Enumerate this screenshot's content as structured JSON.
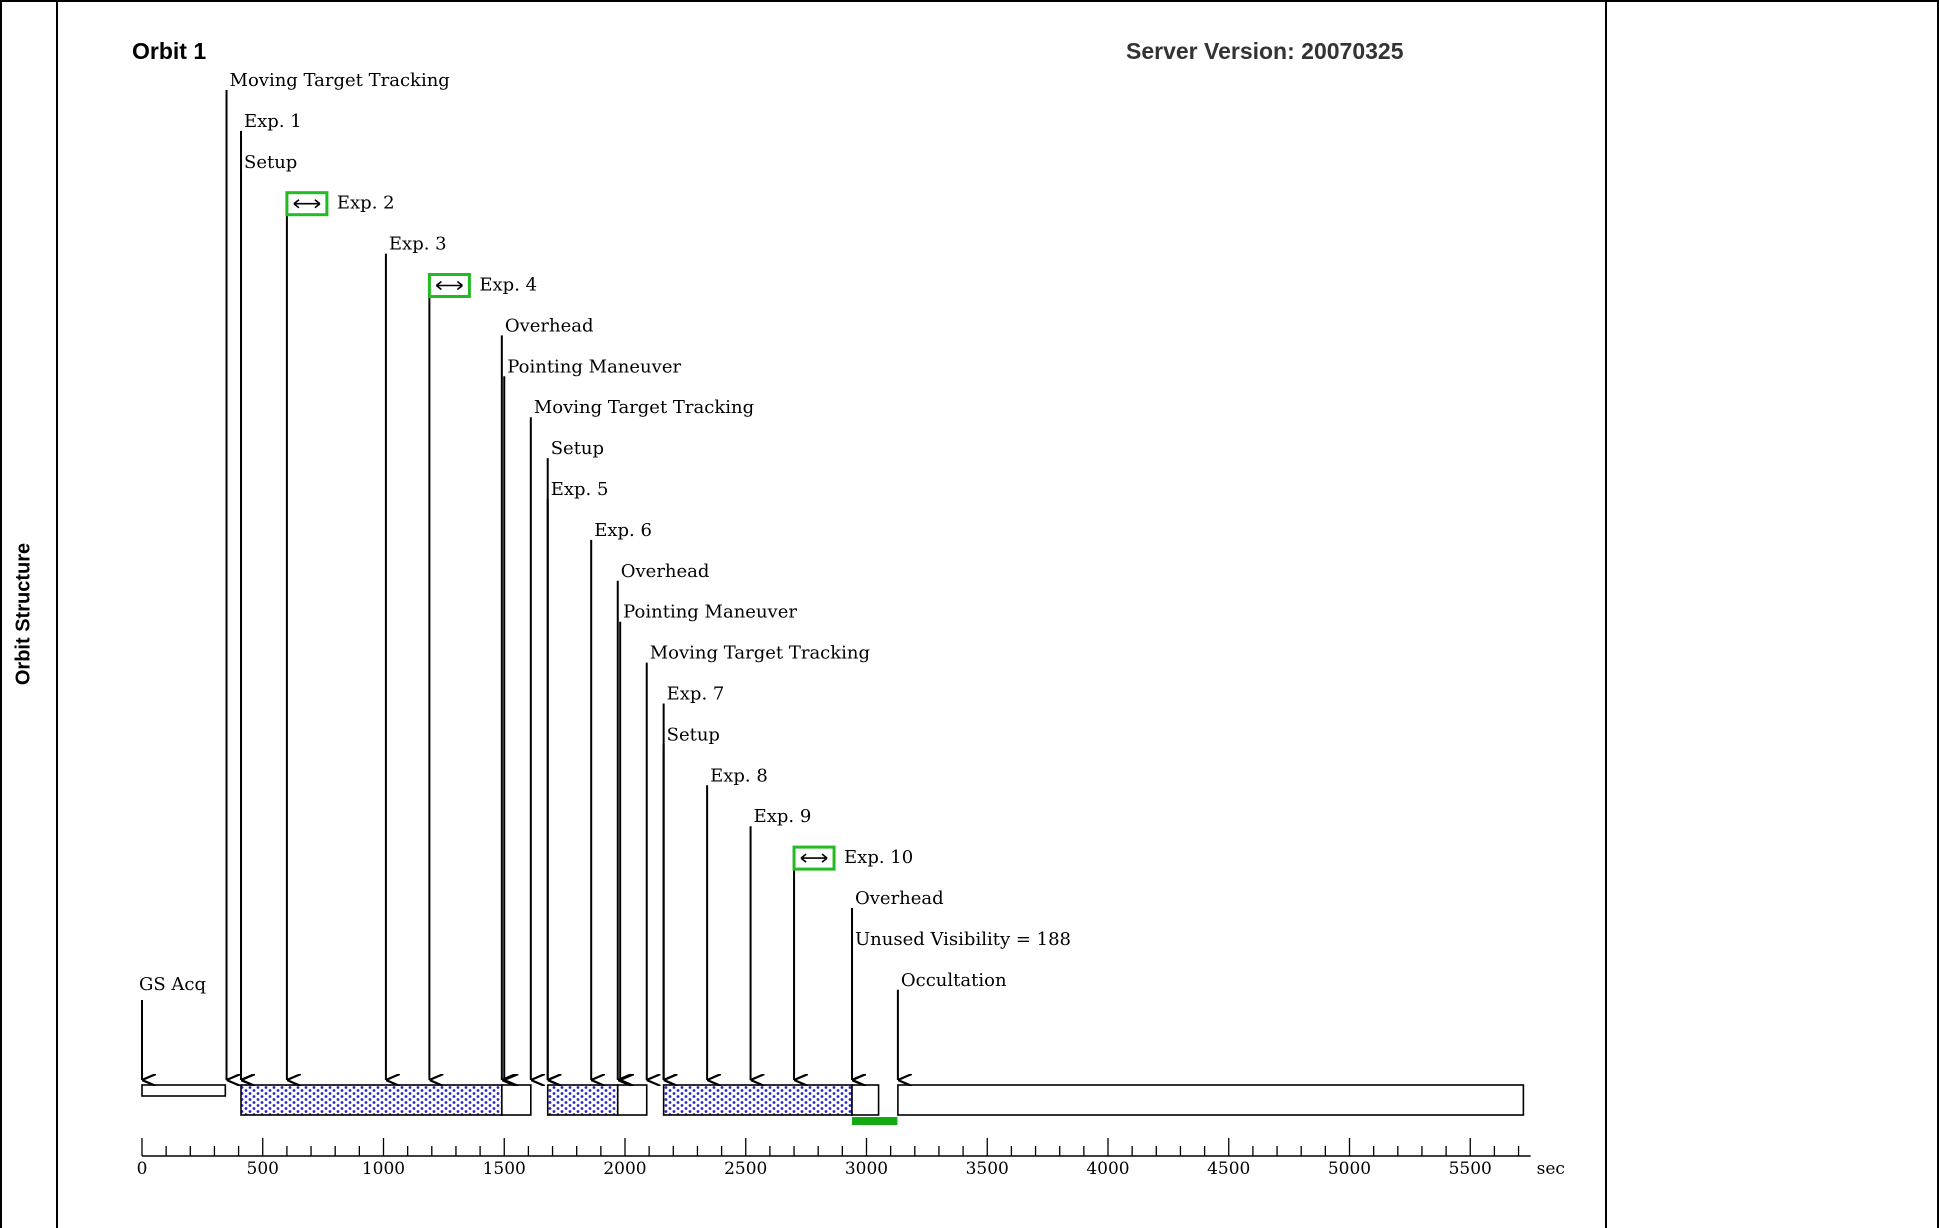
{
  "panel": {
    "side_label": "Orbit Structure"
  },
  "header": {
    "orbit_title": "Orbit 1",
    "server_version": "Server Version: 20070325"
  },
  "timeline": {
    "unit": "sec",
    "axis_ticks": [
      "0",
      "500",
      "1000",
      "1500",
      "2000",
      "2500",
      "3000",
      "3500",
      "4000",
      "4500",
      "5000",
      "5500"
    ],
    "axis_max": 5750,
    "events": [
      {
        "label": "Moving Target Tracking",
        "t": 350,
        "flag": false
      },
      {
        "label": "Exp. 1",
        "t": 410,
        "flag": false
      },
      {
        "label": "Setup",
        "t": 410,
        "flag": false
      },
      {
        "label": "Exp. 2",
        "t": 600,
        "flag": true
      },
      {
        "label": "Exp. 3",
        "t": 1010,
        "flag": false
      },
      {
        "label": "Exp. 4",
        "t": 1190,
        "flag": true
      },
      {
        "label": "Overhead",
        "t": 1490,
        "flag": false
      },
      {
        "label": "Pointing Maneuver",
        "t": 1500,
        "flag": false
      },
      {
        "label": "Moving Target Tracking",
        "t": 1610,
        "flag": false
      },
      {
        "label": "Setup",
        "t": 1680,
        "flag": false
      },
      {
        "label": "Exp. 5",
        "t": 1680,
        "flag": false
      },
      {
        "label": "Exp. 6",
        "t": 1860,
        "flag": false
      },
      {
        "label": "Overhead",
        "t": 1970,
        "flag": false
      },
      {
        "label": "Pointing Maneuver",
        "t": 1980,
        "flag": false
      },
      {
        "label": "Moving Target Tracking",
        "t": 2090,
        "flag": false
      },
      {
        "label": "Exp. 7",
        "t": 2160,
        "flag": false
      },
      {
        "label": "Setup",
        "t": 2160,
        "flag": false
      },
      {
        "label": "Exp. 8",
        "t": 2340,
        "flag": false
      },
      {
        "label": "Exp. 9",
        "t": 2520,
        "flag": false
      },
      {
        "label": "Exp. 10",
        "t": 2700,
        "flag": true
      },
      {
        "label": "Overhead",
        "t": 2940,
        "flag": false
      },
      {
        "label": "Unused Visibility = 188",
        "t": 2940,
        "flag": false
      },
      {
        "label": "Occultation",
        "t": 3130,
        "flag": false
      }
    ],
    "gs_acq": {
      "label": "GS Acq",
      "t": 0
    },
    "segments": [
      {
        "kind": "plain",
        "start": 0,
        "end": 345
      },
      {
        "kind": "exposure",
        "start": 410,
        "end": 1490
      },
      {
        "kind": "plain",
        "start": 1490,
        "end": 1610
      },
      {
        "kind": "exposure",
        "start": 1680,
        "end": 1970
      },
      {
        "kind": "plain",
        "start": 1970,
        "end": 2090
      },
      {
        "kind": "exposure",
        "start": 2160,
        "end": 2940
      },
      {
        "kind": "plain",
        "start": 2940,
        "end": 3050
      },
      {
        "kind": "plain",
        "start": 3130,
        "end": 5720
      }
    ],
    "unused_bar": {
      "start": 2940,
      "end": 3128
    },
    "colors": {
      "flag": "#22bb22",
      "exposure_fill": "#2222cc",
      "unused": "#11aa11"
    }
  }
}
